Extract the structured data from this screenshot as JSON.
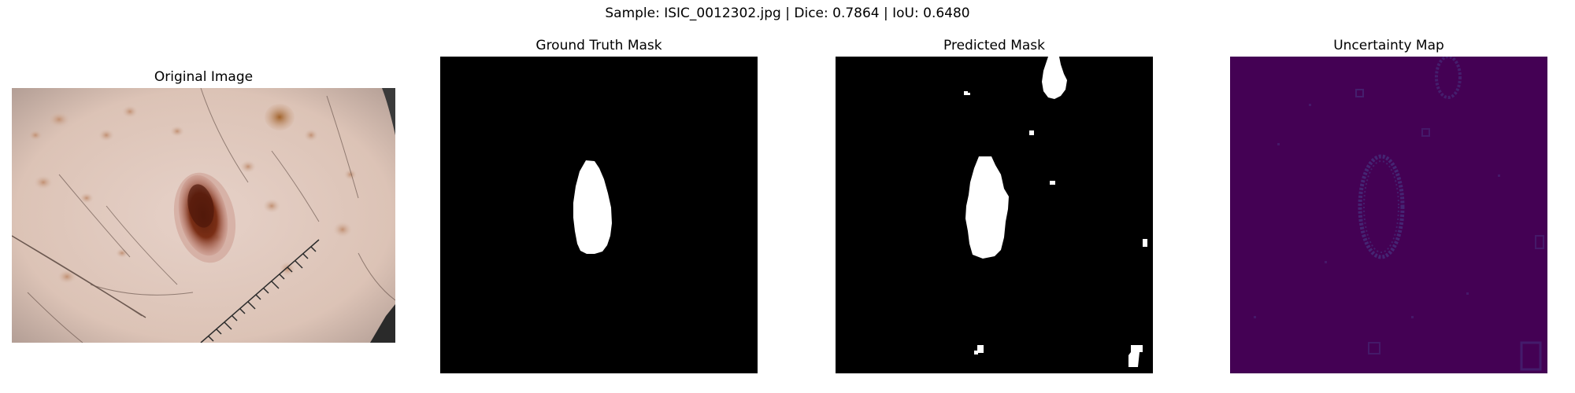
{
  "figure": {
    "suptitle": "Sample: ISIC_0012302.jpg | Dice: 0.7864 | IoU: 0.6480"
  },
  "panels": [
    {
      "title": "Original Image",
      "content": "dermoscopy photo of skin lesion with ruler and hairs"
    },
    {
      "title": "Ground Truth Mask",
      "content": "binary mask, black background with single white ellipse"
    },
    {
      "title": "Predicted Mask",
      "content": "binary mask, black background with main lesion blob and small spurious blobs"
    },
    {
      "title": "Uncertainty Map",
      "content": "viridis-style heat map, dark purple background with faint elliptical outline"
    }
  ],
  "colors": {
    "mask_background": "#000000",
    "mask_foreground": "#ffffff",
    "uncertainty_low": "#440154",
    "uncertainty_mid": "#46327e"
  }
}
